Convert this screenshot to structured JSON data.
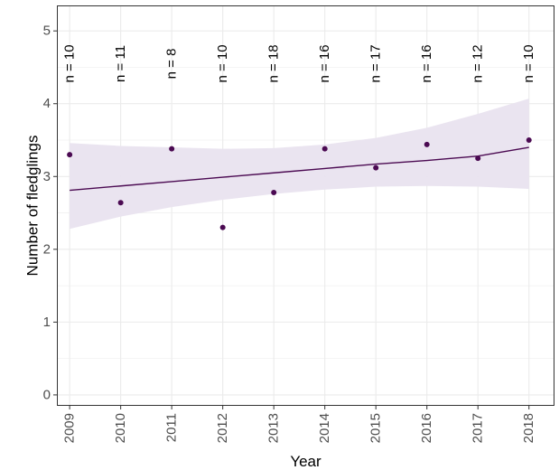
{
  "chart_data": {
    "type": "scatter",
    "title": "",
    "xlabel": "Year",
    "ylabel": "Number of fledglings",
    "x": [
      2009,
      2010,
      2011,
      2012,
      2013,
      2014,
      2015,
      2016,
      2017,
      2018
    ],
    "x_tick_labels": [
      "2009",
      "2010",
      "2011",
      "2012",
      "2013",
      "2014",
      "2015",
      "2016",
      "2017",
      "2018"
    ],
    "y": [
      3.3,
      2.64,
      3.38,
      2.3,
      2.78,
      3.38,
      3.12,
      3.44,
      3.25,
      3.5
    ],
    "y_ticks": [
      0,
      1,
      2,
      3,
      4,
      5
    ],
    "y_tick_labels": [
      "0",
      "1",
      "2",
      "3",
      "4",
      "5"
    ],
    "xlim": [
      2008.75,
      2018.5
    ],
    "ylim": [
      -0.15,
      5.35
    ],
    "n_labels": [
      "n = 10",
      "n = 11",
      "n = 8",
      "n = 10",
      "n = 18",
      "n = 16",
      "n = 17",
      "n = 16",
      "n = 12",
      "n = 10"
    ],
    "trend": {
      "x": [
        2009,
        2010,
        2011,
        2012,
        2013,
        2014,
        2015,
        2016,
        2017,
        2018
      ],
      "fit": [
        2.81,
        2.87,
        2.93,
        2.99,
        3.05,
        3.11,
        3.17,
        3.22,
        3.28,
        3.4
      ],
      "lower": [
        2.28,
        2.45,
        2.58,
        2.68,
        2.76,
        2.82,
        2.86,
        2.87,
        2.86,
        2.83
      ],
      "upper": [
        3.46,
        3.42,
        3.4,
        3.38,
        3.39,
        3.44,
        3.53,
        3.67,
        3.86,
        4.07
      ]
    },
    "grid": true,
    "colors": {
      "points": "#4b0a52",
      "line": "#4b0a52",
      "ribbon": "#e9e3ef",
      "grid": "#ebebeb",
      "frame": "#333333",
      "background": "#ffffff"
    }
  }
}
